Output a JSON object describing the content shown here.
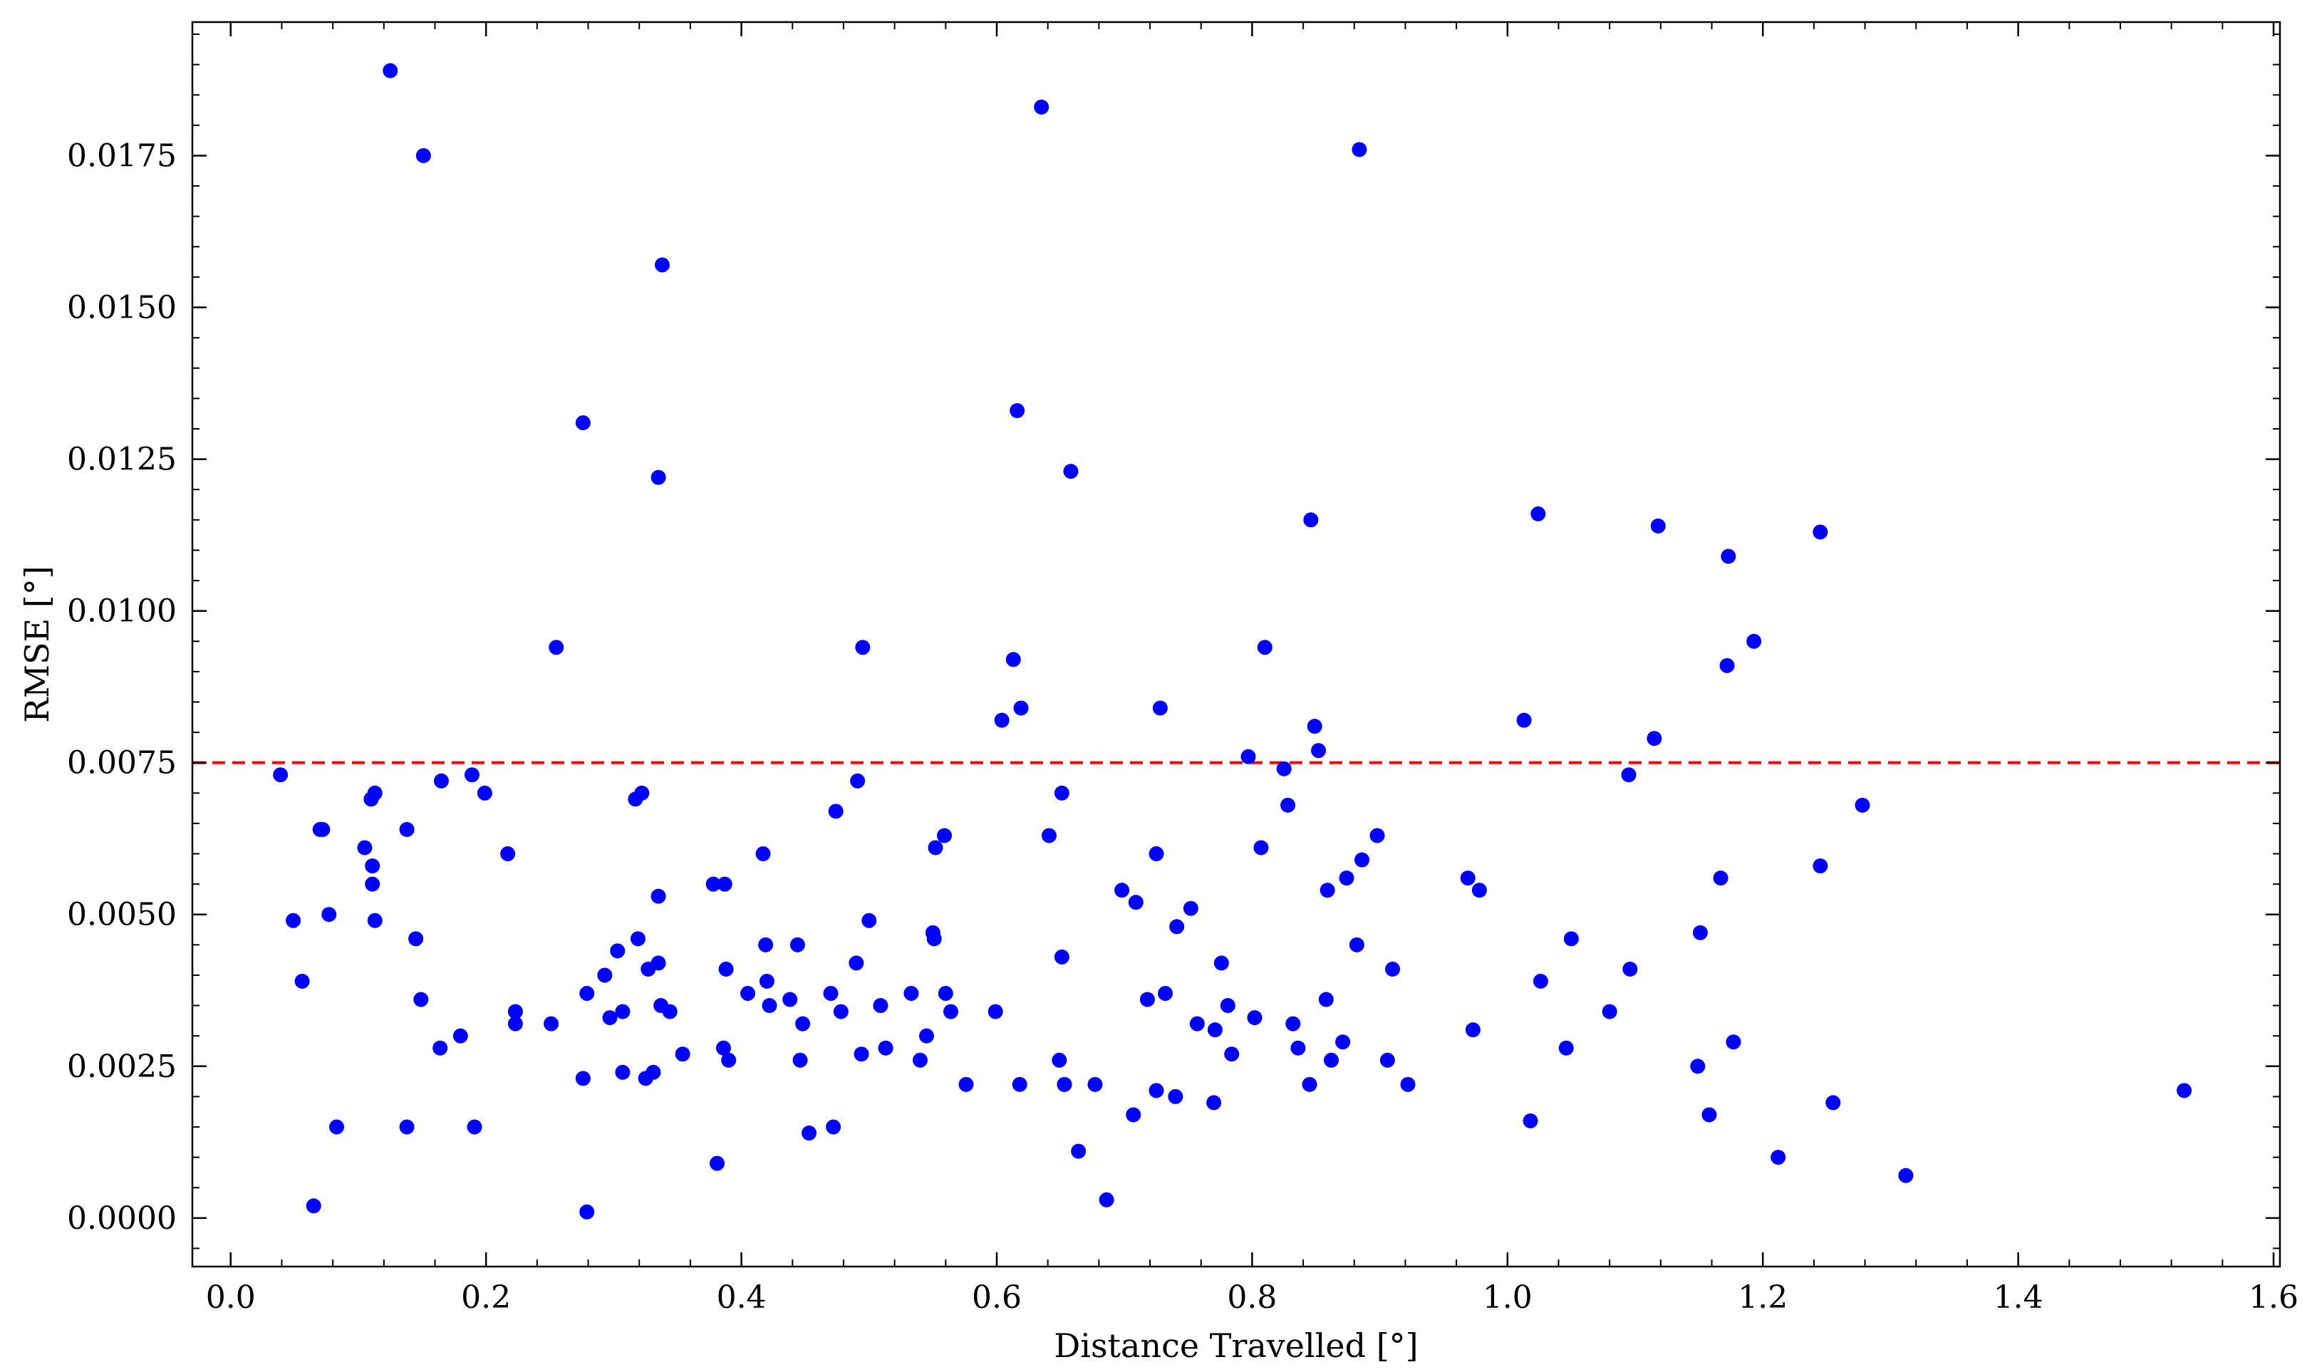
{
  "chart_data": {
    "type": "scatter",
    "title": "",
    "xlabel": "Distance Travelled [°]",
    "ylabel": "RMSE [°]",
    "xlim": [
      -0.03,
      1.605
    ],
    "ylim": [
      -0.0008,
      0.0197
    ],
    "x_ticks": [
      {
        "value": 0.0,
        "label": "0.0"
      },
      {
        "value": 0.2,
        "label": "0.2"
      },
      {
        "value": 0.4,
        "label": "0.4"
      },
      {
        "value": 0.6,
        "label": "0.6"
      },
      {
        "value": 0.8,
        "label": "0.8"
      },
      {
        "value": 1.0,
        "label": "1.0"
      },
      {
        "value": 1.2,
        "label": "1.2"
      },
      {
        "value": 1.4,
        "label": "1.4"
      },
      {
        "value": 1.6,
        "label": "1.6"
      }
    ],
    "y_ticks": [
      {
        "value": 0.0,
        "label": "0.0000"
      },
      {
        "value": 0.0025,
        "label": "0.0025"
      },
      {
        "value": 0.005,
        "label": "0.0050"
      },
      {
        "value": 0.0075,
        "label": "0.0075"
      },
      {
        "value": 0.01,
        "label": "0.0100"
      },
      {
        "value": 0.0125,
        "label": "0.0125"
      },
      {
        "value": 0.015,
        "label": "0.0150"
      },
      {
        "value": 0.0175,
        "label": "0.0175"
      }
    ],
    "grid": false,
    "legend": "none",
    "point_color": "#0000ff",
    "threshold": {
      "y": 0.0075,
      "color": "#ff0000",
      "style": "dashed"
    },
    "points": [
      [
        0.039,
        0.0073
      ],
      [
        0.049,
        0.0049
      ],
      [
        0.056,
        0.0039
      ],
      [
        0.065,
        0.0002
      ],
      [
        0.07,
        0.0064
      ],
      [
        0.072,
        0.0064
      ],
      [
        0.077,
        0.005
      ],
      [
        0.083,
        0.0015
      ],
      [
        0.105,
        0.0061
      ],
      [
        0.11,
        0.0069
      ],
      [
        0.111,
        0.0058
      ],
      [
        0.111,
        0.0055
      ],
      [
        0.113,
        0.007
      ],
      [
        0.113,
        0.0049
      ],
      [
        0.125,
        0.0189
      ],
      [
        0.138,
        0.0064
      ],
      [
        0.138,
        0.0015
      ],
      [
        0.145,
        0.0046
      ],
      [
        0.149,
        0.0036
      ],
      [
        0.151,
        0.0175
      ],
      [
        0.164,
        0.0028
      ],
      [
        0.165,
        0.0072
      ],
      [
        0.18,
        0.003
      ],
      [
        0.189,
        0.0073
      ],
      [
        0.191,
        0.0015
      ],
      [
        0.199,
        0.007
      ],
      [
        0.217,
        0.006
      ],
      [
        0.223,
        0.0034
      ],
      [
        0.223,
        0.0032
      ],
      [
        0.251,
        0.0032
      ],
      [
        0.255,
        0.0094
      ],
      [
        0.276,
        0.0131
      ],
      [
        0.276,
        0.0023
      ],
      [
        0.279,
        0.0037
      ],
      [
        0.279,
        0.0001
      ],
      [
        0.293,
        0.004
      ],
      [
        0.297,
        0.0033
      ],
      [
        0.303,
        0.0044
      ],
      [
        0.307,
        0.0034
      ],
      [
        0.307,
        0.0024
      ],
      [
        0.317,
        0.0069
      ],
      [
        0.319,
        0.0046
      ],
      [
        0.322,
        0.007
      ],
      [
        0.325,
        0.0023
      ],
      [
        0.327,
        0.0041
      ],
      [
        0.331,
        0.0024
      ],
      [
        0.335,
        0.0122
      ],
      [
        0.335,
        0.0053
      ],
      [
        0.335,
        0.0042
      ],
      [
        0.337,
        0.0035
      ],
      [
        0.338,
        0.0157
      ],
      [
        0.344,
        0.0034
      ],
      [
        0.354,
        0.0027
      ],
      [
        0.378,
        0.0055
      ],
      [
        0.381,
        0.0009
      ],
      [
        0.386,
        0.0028
      ],
      [
        0.387,
        0.0055
      ],
      [
        0.388,
        0.0041
      ],
      [
        0.39,
        0.0026
      ],
      [
        0.405,
        0.0037
      ],
      [
        0.417,
        0.006
      ],
      [
        0.419,
        0.0045
      ],
      [
        0.42,
        0.0039
      ],
      [
        0.422,
        0.0035
      ],
      [
        0.438,
        0.0036
      ],
      [
        0.444,
        0.0045
      ],
      [
        0.446,
        0.0026
      ],
      [
        0.448,
        0.0032
      ],
      [
        0.453,
        0.0014
      ],
      [
        0.47,
        0.0037
      ],
      [
        0.472,
        0.0015
      ],
      [
        0.474,
        0.0067
      ],
      [
        0.478,
        0.0034
      ],
      [
        0.49,
        0.0042
      ],
      [
        0.491,
        0.0072
      ],
      [
        0.494,
        0.0027
      ],
      [
        0.495,
        0.0094
      ],
      [
        0.5,
        0.0049
      ],
      [
        0.509,
        0.0035
      ],
      [
        0.513,
        0.0028
      ],
      [
        0.533,
        0.0037
      ],
      [
        0.54,
        0.0026
      ],
      [
        0.545,
        0.003
      ],
      [
        0.55,
        0.0047
      ],
      [
        0.551,
        0.0046
      ],
      [
        0.552,
        0.0061
      ],
      [
        0.559,
        0.0063
      ],
      [
        0.56,
        0.0037
      ],
      [
        0.564,
        0.0034
      ],
      [
        0.576,
        0.0022
      ],
      [
        0.599,
        0.0034
      ],
      [
        0.604,
        0.0082
      ],
      [
        0.613,
        0.0092
      ],
      [
        0.616,
        0.0133
      ],
      [
        0.618,
        0.0022
      ],
      [
        0.619,
        0.0084
      ],
      [
        0.635,
        0.0183
      ],
      [
        0.641,
        0.0063
      ],
      [
        0.649,
        0.0026
      ],
      [
        0.651,
        0.007
      ],
      [
        0.651,
        0.0043
      ],
      [
        0.653,
        0.0022
      ],
      [
        0.653,
        0.0022
      ],
      [
        0.658,
        0.0123
      ],
      [
        0.664,
        0.0011
      ],
      [
        0.677,
        0.0022
      ],
      [
        0.686,
        0.0003
      ],
      [
        0.698,
        0.0054
      ],
      [
        0.707,
        0.0017
      ],
      [
        0.709,
        0.0052
      ],
      [
        0.718,
        0.0036
      ],
      [
        0.725,
        0.006
      ],
      [
        0.725,
        0.0021
      ],
      [
        0.728,
        0.0084
      ],
      [
        0.732,
        0.0037
      ],
      [
        0.74,
        0.002
      ],
      [
        0.741,
        0.0048
      ],
      [
        0.752,
        0.0051
      ],
      [
        0.757,
        0.0032
      ],
      [
        0.77,
        0.0019
      ],
      [
        0.771,
        0.0031
      ],
      [
        0.776,
        0.0042
      ],
      [
        0.781,
        0.0035
      ],
      [
        0.784,
        0.0027
      ],
      [
        0.797,
        0.0076
      ],
      [
        0.802,
        0.0033
      ],
      [
        0.807,
        0.0061
      ],
      [
        0.81,
        0.0094
      ],
      [
        0.825,
        0.0074
      ],
      [
        0.828,
        0.0068
      ],
      [
        0.832,
        0.0032
      ],
      [
        0.836,
        0.0028
      ],
      [
        0.845,
        0.0022
      ],
      [
        0.846,
        0.0115
      ],
      [
        0.849,
        0.0081
      ],
      [
        0.852,
        0.0077
      ],
      [
        0.858,
        0.0036
      ],
      [
        0.859,
        0.0054
      ],
      [
        0.862,
        0.0026
      ],
      [
        0.871,
        0.0029
      ],
      [
        0.874,
        0.0056
      ],
      [
        0.882,
        0.0045
      ],
      [
        0.884,
        0.0176
      ],
      [
        0.886,
        0.0059
      ],
      [
        0.898,
        0.0063
      ],
      [
        0.906,
        0.0026
      ],
      [
        0.91,
        0.0041
      ],
      [
        0.922,
        0.0022
      ],
      [
        0.969,
        0.0056
      ],
      [
        0.973,
        0.0031
      ],
      [
        0.978,
        0.0054
      ],
      [
        1.013,
        0.0082
      ],
      [
        1.018,
        0.0016
      ],
      [
        1.024,
        0.0116
      ],
      [
        1.026,
        0.0039
      ],
      [
        1.046,
        0.0028
      ],
      [
        1.05,
        0.0046
      ],
      [
        1.08,
        0.0034
      ],
      [
        1.095,
        0.0073
      ],
      [
        1.096,
        0.0041
      ],
      [
        1.115,
        0.0079
      ],
      [
        1.118,
        0.0114
      ],
      [
        1.149,
        0.0025
      ],
      [
        1.151,
        0.0047
      ],
      [
        1.158,
        0.0017
      ],
      [
        1.167,
        0.0056
      ],
      [
        1.172,
        0.0091
      ],
      [
        1.173,
        0.0109
      ],
      [
        1.177,
        0.0029
      ],
      [
        1.193,
        0.0095
      ],
      [
        1.212,
        0.001
      ],
      [
        1.245,
        0.0113
      ],
      [
        1.245,
        0.0058
      ],
      [
        1.255,
        0.0019
      ],
      [
        1.278,
        0.0068
      ],
      [
        1.312,
        0.0007
      ],
      [
        1.53,
        0.0021
      ]
    ]
  }
}
